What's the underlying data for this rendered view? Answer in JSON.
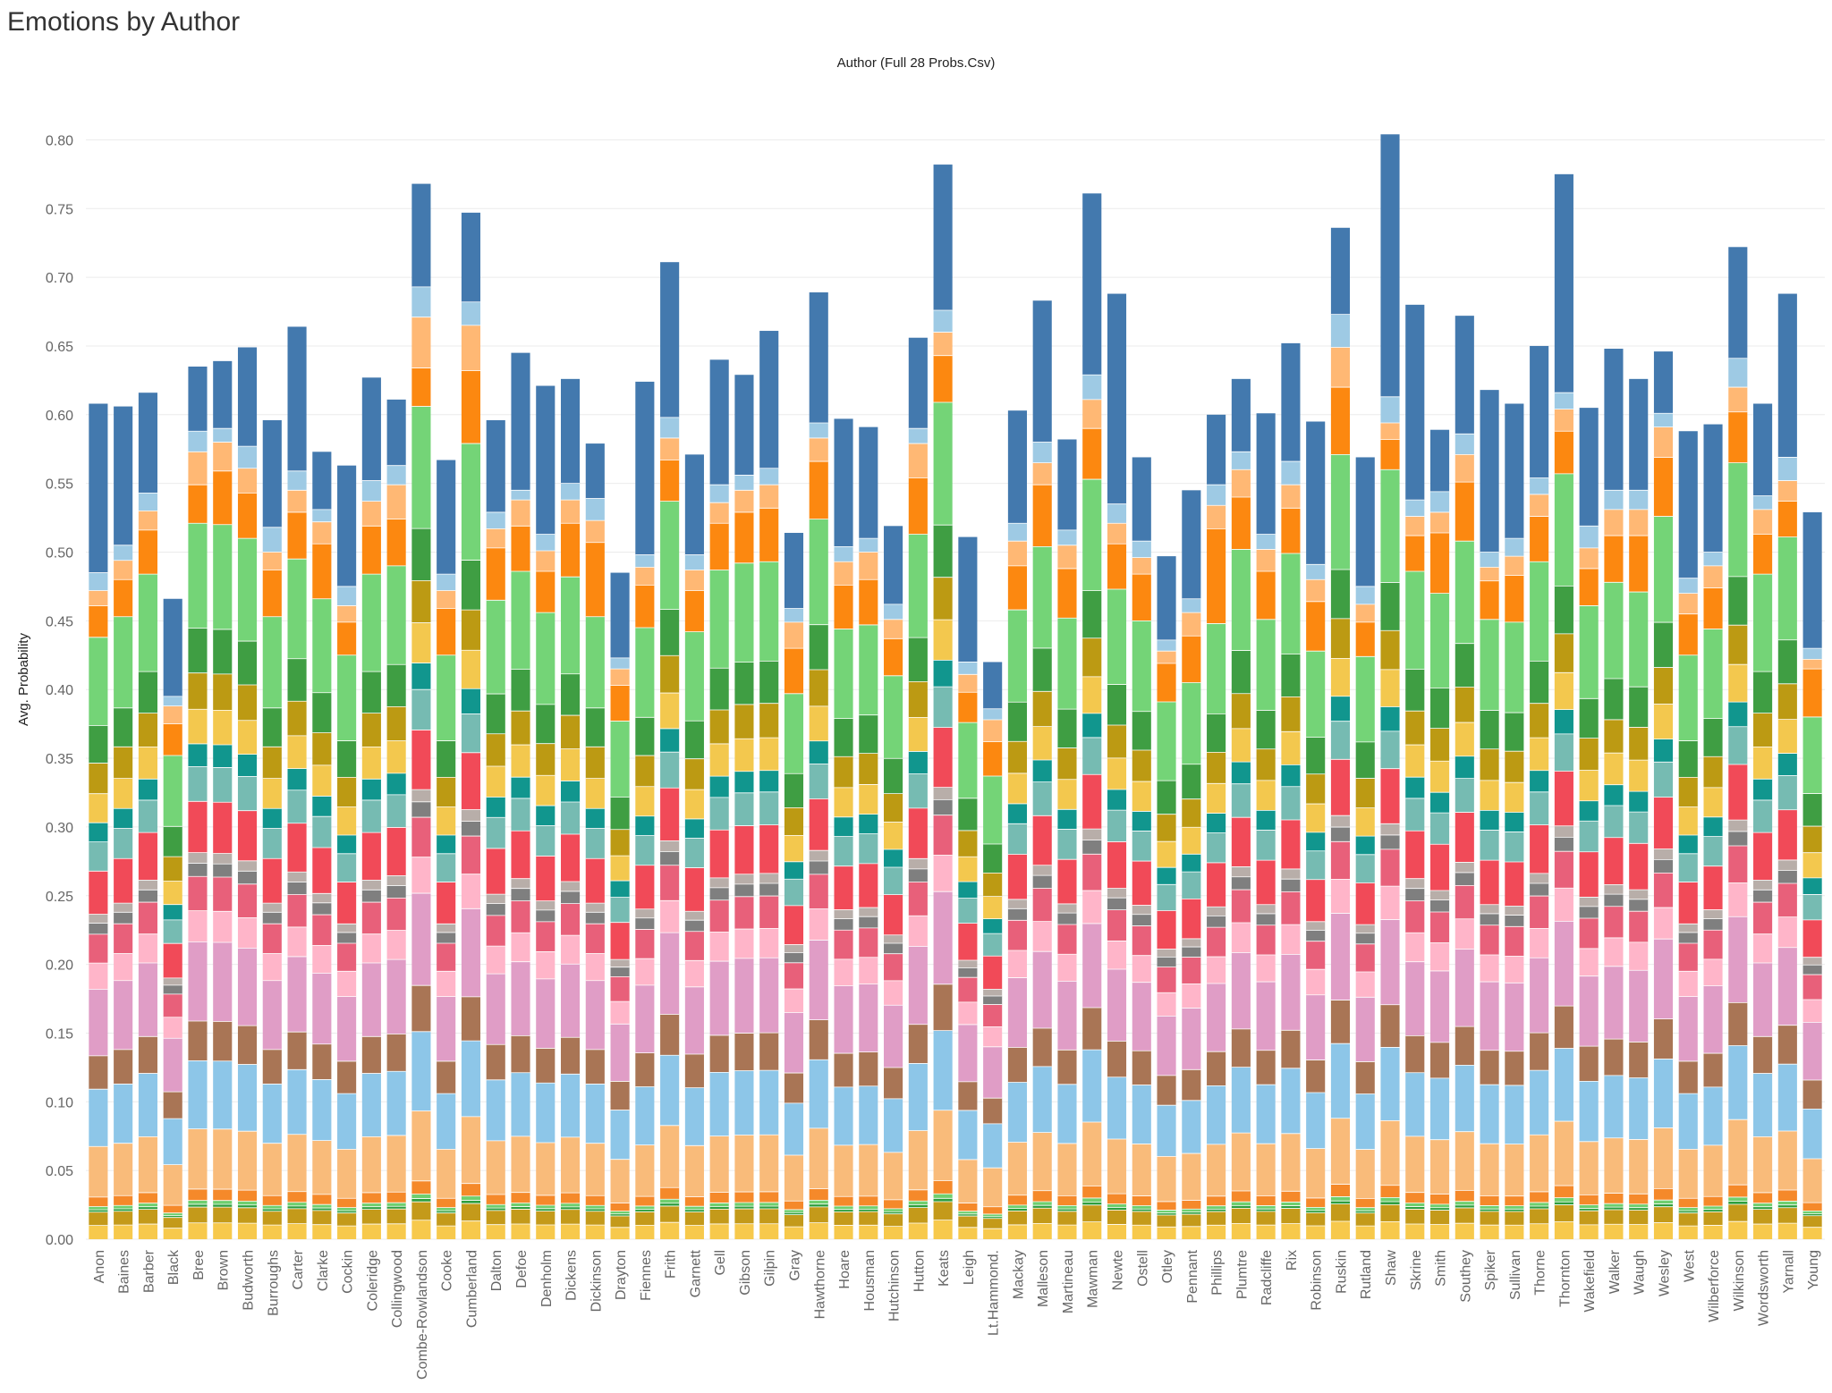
{
  "title": "Emotions by Author",
  "chart_data": {
    "type": "bar",
    "stacked": true,
    "header": "Author (Full 28 Probs.Csv)",
    "ylabel": "Avg. Probability",
    "ylim": [
      0,
      0.82
    ],
    "yticks": [
      "0.00",
      "0.05",
      "0.10",
      "0.15",
      "0.20",
      "0.25",
      "0.30",
      "0.35",
      "0.40",
      "0.45",
      "0.50",
      "0.55",
      "0.60",
      "0.65",
      "0.70",
      "0.75",
      "0.80"
    ],
    "grid": true,
    "legend": "none",
    "categories": [
      "Anon",
      "Baines",
      "Barber",
      "Black",
      "Bree",
      "Brown",
      "Budworth",
      "Burroughs",
      "Carter",
      "Clarke",
      "Cockin",
      "Coleridge",
      "Collingwood",
      "Combe-Rowlandson",
      "Cooke",
      "Cumberland",
      "Dalton",
      "Defoe",
      "Denholm",
      "Dickens",
      "Dickinson",
      "Drayton",
      "Fiennes",
      "Frith",
      "Garnett",
      "Gell",
      "Gibson",
      "Gilpin",
      "Gray",
      "Hawthorne",
      "Hoare",
      "Housman",
      "Hutchinson",
      "Hutton",
      "Keats",
      "Leigh",
      "Lt.Hammond.",
      "Mackay",
      "Malleson",
      "Martineau",
      "Mawman",
      "Newte",
      "Ostell",
      "Otley",
      "Pennant",
      "Phillips",
      "Plumtre",
      "Radcliffe",
      "Rix",
      "Robinson",
      "Ruskin",
      "Rutland",
      "Shaw",
      "Skrine",
      "Smith",
      "Southey",
      "Spiker",
      "Sullivan",
      "Thorne",
      "Thornton",
      "Wakefield",
      "Walker",
      "Waugh",
      "Wesley",
      "West",
      "Wilberforce",
      "Wilkinson",
      "Wordsworth",
      "Yarnall",
      "Young"
    ],
    "totals": [
      0.608,
      0.606,
      0.616,
      0.466,
      0.635,
      0.639,
      0.649,
      0.596,
      0.664,
      0.573,
      0.563,
      0.627,
      0.611,
      0.768,
      0.567,
      0.747,
      0.596,
      0.645,
      0.621,
      0.626,
      0.579,
      0.485,
      0.624,
      0.711,
      0.571,
      0.64,
      0.629,
      0.661,
      0.514,
      0.689,
      0.597,
      0.591,
      0.519,
      0.656,
      0.782,
      0.511,
      0.42,
      0.603,
      0.683,
      0.582,
      0.761,
      0.688,
      0.569,
      0.497,
      0.545,
      0.6,
      0.626,
      0.601,
      0.652,
      0.595,
      0.736,
      0.569,
      0.804,
      0.68,
      0.589,
      0.672,
      0.618,
      0.608,
      0.65,
      0.775,
      0.605,
      0.648,
      0.626,
      0.646,
      0.588,
      0.593,
      0.722,
      0.608,
      0.688,
      0.529
    ],
    "neutral_top": [
      0.485,
      0.505,
      0.543,
      0.395,
      0.588,
      0.59,
      0.577,
      0.518,
      0.559,
      0.531,
      0.475,
      0.552,
      0.563,
      0.693,
      0.484,
      0.682,
      0.529,
      0.545,
      0.513,
      0.55,
      0.539,
      0.423,
      0.498,
      0.598,
      0.498,
      0.549,
      0.556,
      0.561,
      0.459,
      0.594,
      0.504,
      0.51,
      0.462,
      0.59,
      0.676,
      0.42,
      0.386,
      0.521,
      0.58,
      0.516,
      0.629,
      0.535,
      0.508,
      0.436,
      0.466,
      0.549,
      0.573,
      0.513,
      0.566,
      0.491,
      0.673,
      0.475,
      0.613,
      0.538,
      0.544,
      0.586,
      0.5,
      0.51,
      0.554,
      0.616,
      0.519,
      0.545,
      0.545,
      0.601,
      0.481,
      0.5,
      0.641,
      0.541,
      0.569,
      0.43
    ],
    "optimism_top": [
      0.472,
      0.494,
      0.53,
      0.388,
      0.573,
      0.58,
      0.561,
      0.5,
      0.545,
      0.522,
      0.461,
      0.537,
      0.549,
      0.671,
      0.472,
      0.665,
      0.517,
      0.538,
      0.501,
      0.538,
      0.523,
      0.415,
      0.489,
      0.583,
      0.487,
      0.536,
      0.545,
      0.549,
      0.449,
      0.583,
      0.493,
      0.5,
      0.451,
      0.579,
      0.66,
      0.411,
      0.378,
      0.508,
      0.565,
      0.505,
      0.611,
      0.521,
      0.496,
      0.428,
      0.456,
      0.534,
      0.56,
      0.502,
      0.549,
      0.48,
      0.649,
      0.462,
      0.594,
      0.526,
      0.529,
      0.571,
      0.489,
      0.497,
      0.542,
      0.604,
      0.503,
      0.531,
      0.531,
      0.591,
      0.47,
      0.49,
      0.62,
      0.531,
      0.552,
      0.422
    ],
    "curiosity_top": [
      0.461,
      0.48,
      0.516,
      0.375,
      0.549,
      0.559,
      0.543,
      0.487,
      0.529,
      0.506,
      0.449,
      0.519,
      0.524,
      0.634,
      0.459,
      0.632,
      0.503,
      0.519,
      0.486,
      0.521,
      0.507,
      0.403,
      0.476,
      0.567,
      0.472,
      0.521,
      0.529,
      0.532,
      0.43,
      0.566,
      0.476,
      0.48,
      0.437,
      0.554,
      0.643,
      0.398,
      0.362,
      0.49,
      0.549,
      0.488,
      0.59,
      0.506,
      0.484,
      0.419,
      0.439,
      0.517,
      0.54,
      0.486,
      0.532,
      0.464,
      0.62,
      0.449,
      0.582,
      0.512,
      0.514,
      0.551,
      0.479,
      0.483,
      0.526,
      0.588,
      0.488,
      0.512,
      0.512,
      0.569,
      0.455,
      0.474,
      0.602,
      0.513,
      0.537,
      0.415
    ],
    "joy_top": [
      0.438,
      0.453,
      0.484,
      0.352,
      0.521,
      0.52,
      0.51,
      0.453,
      0.495,
      0.466,
      0.425,
      0.484,
      0.49,
      0.606,
      0.425,
      0.579,
      0.465,
      0.486,
      0.456,
      0.482,
      0.453,
      0.377,
      0.445,
      0.537,
      0.442,
      0.487,
      0.492,
      0.493,
      0.397,
      0.524,
      0.444,
      0.447,
      0.41,
      0.513,
      0.609,
      0.376,
      0.337,
      0.458,
      0.504,
      0.452,
      0.553,
      0.473,
      0.45,
      0.391,
      0.405,
      0.448,
      0.502,
      0.451,
      0.499,
      0.428,
      0.571,
      0.424,
      0.56,
      0.486,
      0.47,
      0.508,
      0.451,
      0.449,
      0.493,
      0.557,
      0.461,
      0.478,
      0.471,
      0.526,
      0.425,
      0.444,
      0.565,
      0.484,
      0.511,
      0.38
    ],
    "colors": [
      "#F7C94C",
      "#C49A1A",
      "#2E9E3E",
      "#6FCF6F",
      "#F5892A",
      "#F9BB7A",
      "#8DC6E8",
      "#A97555",
      "#E09DC6",
      "#FFB5C9",
      "#E8607A",
      "#7F7F7F",
      "#B8AEA9",
      "#F14A58",
      "#76BBB2",
      "#11968E",
      "#F3C84E",
      "#BC9A13",
      "#3F9E43",
      "#74D477",
      "#FC8810",
      "#FFB874",
      "#9ECAE4",
      "#4379AE"
    ]
  }
}
